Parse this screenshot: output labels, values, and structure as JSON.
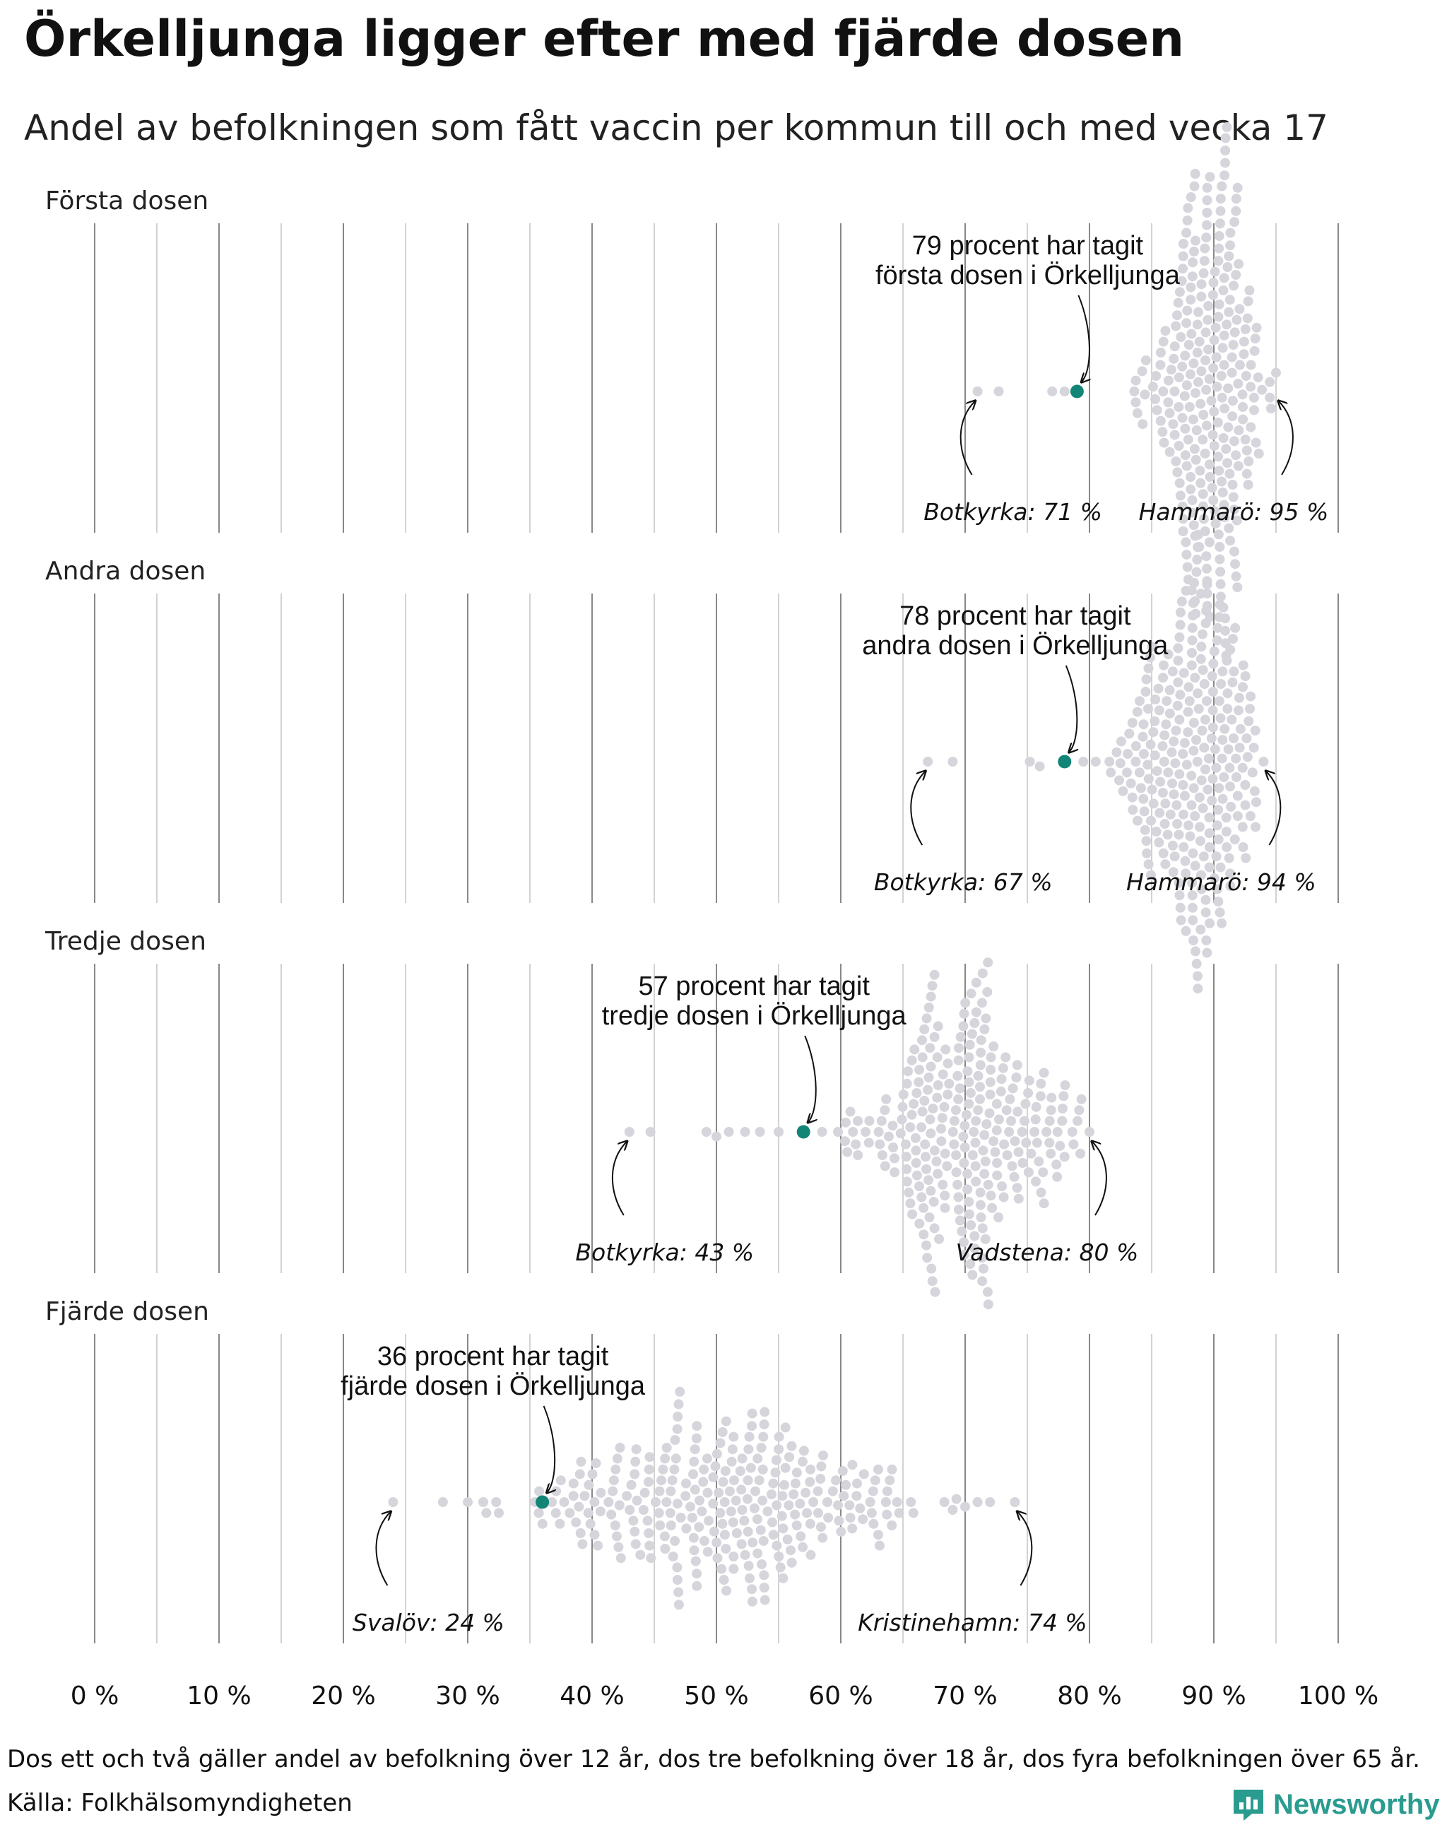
{
  "title": "Örkelljunga ligger efter med fjärde dosen",
  "subtitle": "Andel av befolkningen som fått vaccin per kommun till och med vecka 17",
  "footnote": "Dos ett och två gäller andel av befolkning över 12 år, dos tre befolkning över 18 år, dos fyra befolkningen över 65 år.",
  "source": "Källa: Folkhälsomyndigheten",
  "brand": {
    "name": "Newsworthy",
    "icon": "newsworthy-logo-icon",
    "color": "#2a9b8f"
  },
  "colors": {
    "dot": "#d6d5db",
    "highlight": "#138577",
    "gridline": "#888888"
  },
  "chart_data": {
    "type": "scatter",
    "subtype": "beeswarm",
    "x_unit": "%",
    "xlim": [
      0,
      100
    ],
    "x_ticks": [
      0,
      10,
      20,
      30,
      40,
      50,
      60,
      70,
      80,
      90,
      100
    ],
    "x_tick_labels": [
      "0 %",
      "10 %",
      "20 %",
      "30 %",
      "40 %",
      "50 %",
      "60 %",
      "70 %",
      "80 %",
      "90 %",
      "100 %"
    ],
    "grid": true,
    "panels": [
      {
        "name": "forsta",
        "label": "Första dosen",
        "highlight": {
          "municipality": "Örkelljunga",
          "value": 79,
          "callout": [
            "79 procent har tagit",
            "första dosen i Örkelljunga"
          ]
        },
        "min": {
          "municipality": "Botkyrka",
          "value": 71,
          "label": "Botkyrka: 71 %"
        },
        "max": {
          "municipality": "Hammarö",
          "value": 95,
          "label": "Hammarö: 95 %"
        },
        "distribution": {
          "center": 89.8,
          "spread": 2.4,
          "n": 270
        },
        "outliers": [
          71,
          72.7,
          77,
          78
        ]
      },
      {
        "name": "andra",
        "label": "Andra dosen",
        "highlight": {
          "municipality": "Örkelljunga",
          "value": 78,
          "callout": [
            "78 procent har tagit",
            "andra dosen i Örkelljunga"
          ]
        },
        "min": {
          "municipality": "Botkyrka",
          "value": 67,
          "label": "Botkyrka: 67 %"
        },
        "max": {
          "municipality": "Hammarö",
          "value": 94,
          "label": "Hammarö: 94 %"
        },
        "distribution": {
          "center": 88.2,
          "spread": 2.6,
          "n": 270
        },
        "outliers": [
          67,
          69,
          75.2,
          76,
          79.5,
          80.5
        ]
      },
      {
        "name": "tredje",
        "label": "Tredje dosen",
        "highlight": {
          "municipality": "Örkelljunga",
          "value": 57,
          "callout": [
            "57 procent har tagit",
            "tredje dosen i Örkelljunga"
          ]
        },
        "min": {
          "municipality": "Botkyrka",
          "value": 43,
          "label": "Botkyrka: 43 %"
        },
        "max": {
          "municipality": "Vadstena",
          "value": 80,
          "label": "Vadstena: 80 %"
        },
        "distribution": {
          "center": 70,
          "spread": 4.2,
          "n": 270
        },
        "outliers": [
          43,
          44.7,
          49.2,
          50,
          51,
          52.3,
          53.5,
          55,
          58.5
        ]
      },
      {
        "name": "fjarde",
        "label": "Fjärde dosen",
        "highlight": {
          "municipality": "Örkelljunga",
          "value": 36,
          "callout": [
            "36 procent har tagit",
            "fjärde dosen i Örkelljunga"
          ]
        },
        "min": {
          "municipality": "Svalöv",
          "value": 24,
          "label": "Svalöv: 24 %"
        },
        "max": {
          "municipality": "Kristinehamn",
          "value": 74,
          "label": "Kristinehamn: 74 %"
        },
        "distribution": {
          "center": 51,
          "spread": 7.5,
          "n": 280
        },
        "outliers": [
          24,
          28,
          30,
          31.5,
          32.5,
          69,
          71,
          72
        ]
      }
    ]
  }
}
